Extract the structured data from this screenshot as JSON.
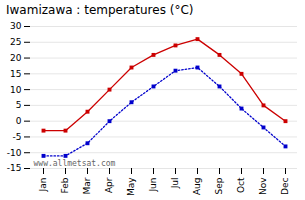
{
  "chart_data": {
    "type": "line",
    "title": "Iwamizawa : temperatures (°C)",
    "categories": [
      "Jan",
      "Feb",
      "Mar",
      "Apr",
      "May",
      "Jun",
      "Jul",
      "Aug",
      "Sep",
      "Oct",
      "Nov",
      "Dec"
    ],
    "series": [
      {
        "color": "#cc0000",
        "marker": "square",
        "line_style": "solid",
        "values": [
          -3,
          -3,
          3,
          10,
          17,
          21,
          24,
          26,
          21,
          15,
          5,
          0
        ]
      },
      {
        "color": "#0000cc",
        "marker": "square",
        "line_style": "dotted",
        "values": [
          -11,
          -11,
          -7,
          0,
          6,
          11,
          16,
          17,
          11,
          4,
          -2,
          -8
        ]
      }
    ],
    "ylim": [
      -15,
      30
    ],
    "yticks": [
      -15,
      -10,
      -5,
      0,
      5,
      10,
      15,
      20,
      25,
      30
    ],
    "grid": "y",
    "annotations": [
      "www.allmetsat.com"
    ]
  }
}
